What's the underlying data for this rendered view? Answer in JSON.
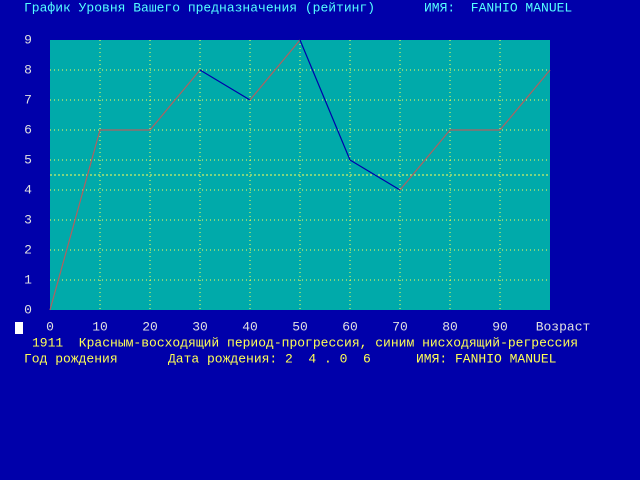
{
  "chart_data": {
    "type": "line",
    "title": "График Уровня Вашего предназначения (рейтинг)",
    "name_label": "ИМЯ:  FANHIO MANUEL",
    "x": [
      0,
      10,
      20,
      30,
      40,
      50,
      60,
      70,
      80,
      90,
      100
    ],
    "values": [
      0,
      6,
      6,
      8,
      7,
      9,
      5,
      4,
      6,
      6,
      8
    ],
    "xlim": [
      0,
      100
    ],
    "ylim": [
      0,
      9
    ],
    "xticks": [
      0,
      10,
      20,
      30,
      40,
      50,
      60,
      70,
      80,
      90
    ],
    "yticks": [
      0,
      1,
      2,
      3,
      4,
      5,
      6,
      7,
      8,
      9
    ],
    "x_label": "Возраст",
    "rise_color": "#b06060",
    "fall_color": "#0000aa",
    "plot_color": "#00aaaa",
    "grid": true,
    "grid_color": "#ffff55",
    "mean_line": 4.5,
    "legend_text": "1911  Красным-восходящий период-прогрессия, синим нисходящий-регрессия",
    "footer": [
      "Год рождения",
      "Дата рождения: 2  4 . 0  6",
      "ИМЯ: FANHIO MANUEL"
    ]
  }
}
